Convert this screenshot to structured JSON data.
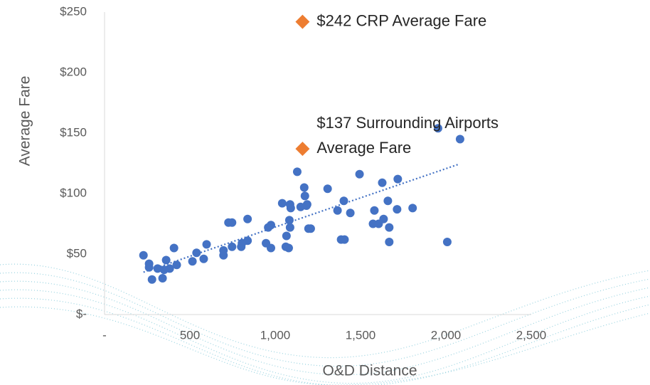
{
  "chart_data": {
    "type": "scatter",
    "x_label": "O&D Distance",
    "y_label": "Average Fare",
    "xlim": [
      0,
      2500
    ],
    "ylim": [
      0,
      250
    ],
    "xticks": [
      {
        "value": 0,
        "label": "-"
      },
      500,
      {
        "value": 1000,
        "label": "1,000"
      },
      {
        "value": 1500,
        "label": "1,500"
      },
      {
        "value": 2000,
        "label": "2,000"
      },
      {
        "value": 2500,
        "label": "2,500"
      }
    ],
    "yticks": [
      {
        "value": 0,
        "label": "$-"
      },
      {
        "value": 50,
        "label": "$50"
      },
      {
        "value": 100,
        "label": "$100"
      },
      {
        "value": 150,
        "label": "$150"
      },
      {
        "value": 200,
        "label": "$200"
      },
      {
        "value": 250,
        "label": "$250"
      }
    ],
    "series": [
      {
        "color": "#4472c4",
        "x": [
          228,
          261,
          261,
          278,
          311,
          340,
          349,
          361,
          382,
          407,
          423,
          515,
          539,
          581,
          598,
          697,
          697,
          726,
          747,
          747,
          801,
          805,
          838,
          838,
          946,
          959,
          975,
          975,
          1041,
          1062,
          1066,
          1079,
          1083,
          1087,
          1087,
          1091,
          1129,
          1149,
          1170,
          1174,
          1183,
          1187,
          1195,
          1208,
          1307,
          1365,
          1386,
          1402,
          1406,
          1440,
          1494,
          1573,
          1581,
          1606,
          1627,
          1635,
          1660,
          1668,
          1668,
          1714,
          1718,
          1805,
          1954,
          2008,
          2083
        ],
        "values": [
          49,
          42,
          39,
          29,
          38,
          30,
          37,
          45,
          38,
          55,
          41,
          44,
          51,
          46,
          58,
          49,
          53,
          76,
          76,
          56,
          56,
          59,
          79,
          61,
          59,
          72,
          74,
          55,
          92,
          56,
          65,
          55,
          78,
          72,
          91,
          88,
          118,
          89,
          105,
          98,
          90,
          91,
          71,
          71,
          104,
          86,
          62,
          94,
          62,
          84,
          116,
          75,
          86,
          75,
          109,
          79,
          94,
          72,
          60,
          87,
          112,
          88,
          154,
          60,
          145
        ]
      }
    ],
    "trendline": {
      "color": "#4472c4",
      "x": [
        228,
        2070
      ],
      "values": [
        35,
        124
      ]
    },
    "annotations": [
      {
        "lines": [
          "$242 CRP Average Fare"
        ],
        "x": 1160,
        "value": 242,
        "color": "#ed7d31"
      },
      {
        "lines": [
          "$137 Surrounding Airports",
          "Average Fare"
        ],
        "x": 1160,
        "value": 137,
        "color": "#ed7d31"
      }
    ]
  }
}
